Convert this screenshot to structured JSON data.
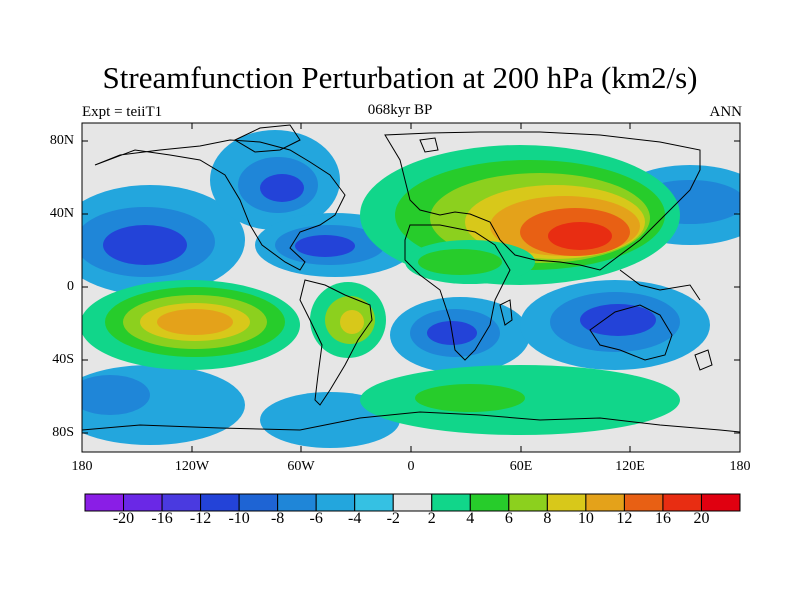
{
  "title": "Streamfunction Perturbation at 200 hPa (km2/s)",
  "left_label": "Expt = teiiT1",
  "center_label": "068kyr BP",
  "right_label": "ANN",
  "y_ticks": [
    "80N",
    "40N",
    "0",
    "40S",
    "80S"
  ],
  "x_ticks": [
    "180",
    "120W",
    "60W",
    "0",
    "60E",
    "120E",
    "180"
  ],
  "colorbar": {
    "labels": [
      "-20",
      "-16",
      "-12",
      "-10",
      "-8",
      "-6",
      "-4",
      "-2",
      "2",
      "4",
      "6",
      "8",
      "10",
      "12",
      "16",
      "20"
    ],
    "colors": [
      "#8a1ee6",
      "#6a28e6",
      "#4a3ae0",
      "#2343d8",
      "#1e64d4",
      "#1f86d8",
      "#23a6dd",
      "#35c1e3",
      "#e6e6e6",
      "#11d68a",
      "#27cc2b",
      "#8cd01e",
      "#d8c81a",
      "#e4a21a",
      "#e86014",
      "#e82d12",
      "#e00010"
    ]
  },
  "chart_data": {
    "type": "heatmap",
    "title": "Streamfunction Perturbation at 200 hPa (km2/s)",
    "projection": "cylindrical equidistant",
    "xlim": [
      -180,
      180
    ],
    "ylim": [
      -90,
      90
    ],
    "levels": [
      -20,
      -16,
      -12,
      -10,
      -8,
      -6,
      -4,
      -2,
      2,
      4,
      6,
      8,
      10,
      12,
      16,
      20
    ],
    "field_centers": [
      {
        "lon": -140,
        "lat": 28,
        "value": -10
      },
      {
        "lon": -78,
        "lat": 58,
        "value": -9
      },
      {
        "lon": -55,
        "lat": 20,
        "value": -9
      },
      {
        "lon": 45,
        "lat": 50,
        "value": 8
      },
      {
        "lon": 95,
        "lat": 25,
        "value": 18
      },
      {
        "lon": 22,
        "lat": 18,
        "value": 6
      },
      {
        "lon": -130,
        "lat": -20,
        "value": 14
      },
      {
        "lon": -35,
        "lat": -20,
        "value": 8
      },
      {
        "lon": 20,
        "lat": -25,
        "value": -10
      },
      {
        "lon": 110,
        "lat": -25,
        "value": -12
      },
      {
        "lon": 130,
        "lat": 50,
        "value": -8
      },
      {
        "lon": -150,
        "lat": -55,
        "value": -5
      },
      {
        "lon": 40,
        "lat": -62,
        "value": 4
      }
    ]
  }
}
